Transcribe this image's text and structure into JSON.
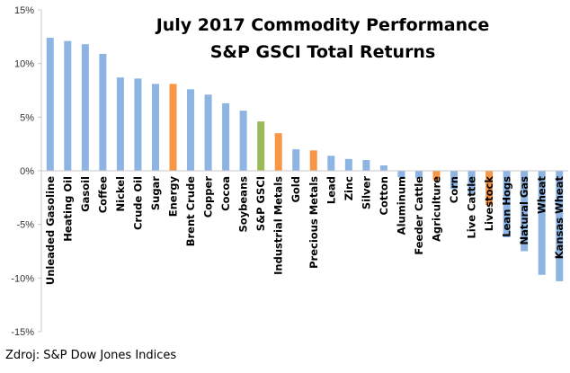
{
  "chart_data": {
    "type": "bar",
    "title": "July 2017 Commodity Performance",
    "subtitle": "S&P GSCI Total Returns",
    "xlabel": "",
    "ylabel": "",
    "ylim": [
      -15,
      15
    ],
    "yticks": [
      -15,
      -10,
      -5,
      0,
      5,
      10,
      15
    ],
    "tick_format": "%",
    "grid": false,
    "legend": "none",
    "categories": [
      "Unleaded Gasoline",
      "Heating Oil",
      "Gasoil",
      "Coffee",
      "Nickel",
      "Crude Oil",
      "Sugar",
      "Energy",
      "Brent Crude",
      "Copper",
      "Cocoa",
      "Soybeans",
      "S&P GSCI",
      "Industrial Metals",
      "Gold",
      "Precious Metals",
      "Lead",
      "Zinc",
      "Silver",
      "Cotton",
      "Aluminum",
      "Feeder Cattle",
      "Agriculture",
      "Corn",
      "Live Cattle",
      "Livestock",
      "Lean Hogs",
      "Natural Gas",
      "Wheat",
      "Kansas Wheat"
    ],
    "values": [
      12.4,
      12.1,
      11.8,
      10.9,
      8.7,
      8.6,
      8.1,
      8.1,
      7.6,
      7.1,
      6.3,
      5.6,
      4.6,
      3.5,
      2.0,
      1.9,
      1.4,
      1.1,
      1.0,
      0.5,
      -0.6,
      -0.7,
      -0.9,
      -1.7,
      -2.3,
      -3.2,
      -6.2,
      -7.5,
      -9.7,
      -10.3
    ],
    "colors": {
      "commodity": "#8db4e2",
      "sector": "#f79646",
      "index": "#9bbb59"
    },
    "bar_groups": [
      "commodity",
      "commodity",
      "commodity",
      "commodity",
      "commodity",
      "commodity",
      "commodity",
      "sector",
      "commodity",
      "commodity",
      "commodity",
      "commodity",
      "index",
      "sector",
      "commodity",
      "sector",
      "commodity",
      "commodity",
      "commodity",
      "commodity",
      "commodity",
      "commodity",
      "sector",
      "commodity",
      "commodity",
      "sector",
      "commodity",
      "commodity",
      "commodity",
      "commodity"
    ]
  },
  "source_text": "Zdroj: S&P Dow Jones Indices"
}
